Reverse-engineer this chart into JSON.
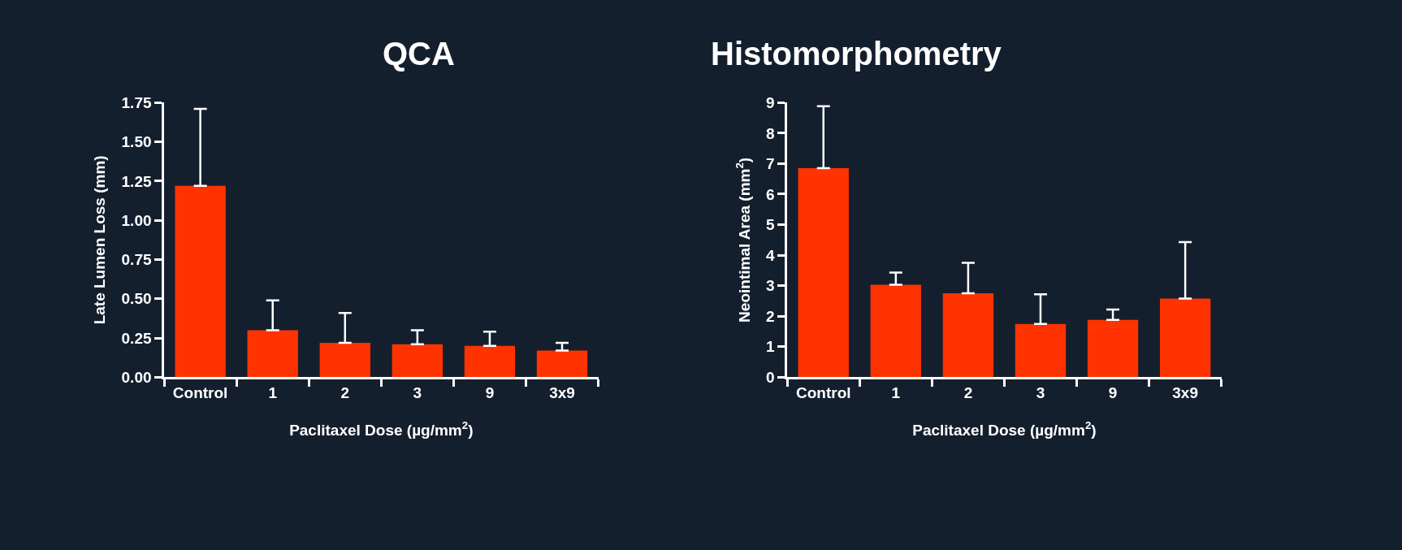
{
  "chart_data": [
    {
      "type": "bar",
      "title": "QCA",
      "xlabel": "Paclitaxel Dose (µg/mm$^{2}$)",
      "ylabel": "Late Lumen Loss (mm)",
      "categories": [
        "Control",
        "1",
        "2",
        "3",
        "9",
        "3x9"
      ],
      "series": [
        {
          "color": "#ff3300",
          "values": [
            1.22,
            0.3,
            0.22,
            0.21,
            0.2,
            0.17
          ],
          "errors": [
            [
              1.22,
              1.71
            ],
            [
              0.3,
              0.49
            ],
            [
              0.22,
              0.41
            ],
            [
              0.21,
              0.3
            ],
            [
              0.2,
              0.29
            ],
            [
              0.17,
              0.22
            ]
          ]
        }
      ],
      "ylim": [
        0,
        1.75
      ],
      "yticks": [
        {
          "value": 0,
          "label": "0.00"
        },
        {
          "value": 0.25,
          "label": "0.25"
        },
        {
          "value": 0.5,
          "label": "0.50"
        },
        {
          "value": 0.75,
          "label": "0.75"
        },
        {
          "value": 1,
          "label": "1.00"
        },
        {
          "value": 1.25,
          "label": "1.25"
        },
        {
          "value": 1.5,
          "label": "1.50"
        },
        {
          "value": 1.75,
          "label": "1.75"
        }
      ],
      "grid": false
    },
    {
      "type": "bar",
      "title": "Histomorphometry",
      "xlabel": "Paclitaxel Dose (µg/mm$^{2}$)",
      "ylabel": "Neointimal Area (mm$^{2}$)",
      "categories": [
        "Control",
        "1",
        "2",
        "3",
        "9",
        "3x9"
      ],
      "series": [
        {
          "color": "#ff3300",
          "values": [
            6.85,
            3.03,
            2.75,
            1.75,
            1.88,
            2.58
          ],
          "errors": [
            [
              6.85,
              8.88
            ],
            [
              3.03,
              3.43
            ],
            [
              2.75,
              3.75
            ],
            [
              1.75,
              2.72
            ],
            [
              1.88,
              2.22
            ],
            [
              2.58,
              4.43
            ]
          ]
        }
      ],
      "ylim": [
        0,
        9
      ],
      "yticks": [
        0,
        1,
        2,
        3,
        4,
        5,
        6,
        7,
        8,
        9
      ],
      "grid": false
    }
  ]
}
